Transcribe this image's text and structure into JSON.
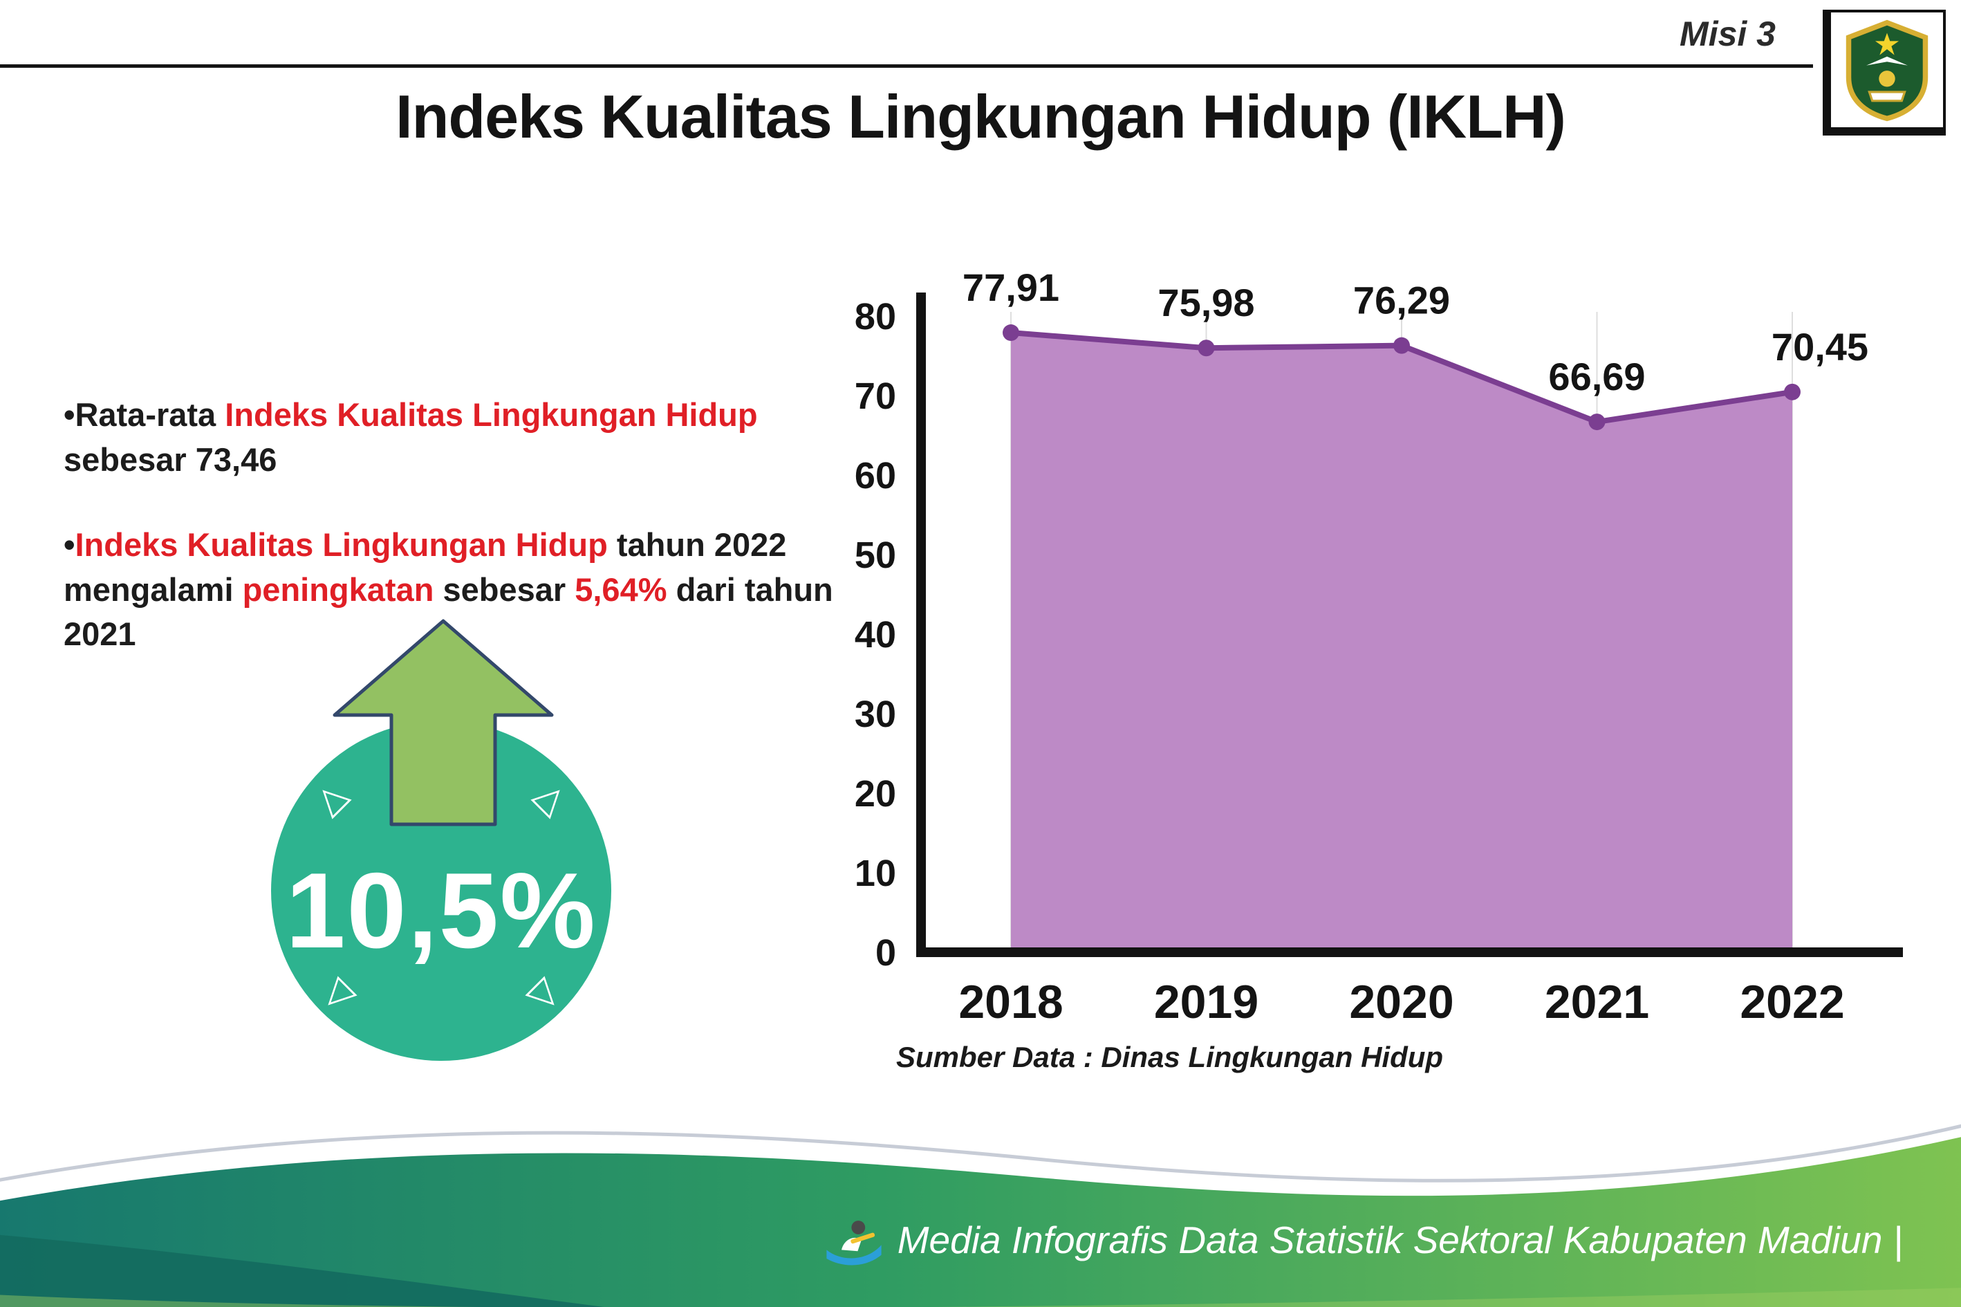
{
  "header": {
    "misi_label": "Misi 3",
    "title": "Indeks Kualitas Lingkungan Hidup (IKLH)",
    "logo_alt": "Kabupaten Madiun"
  },
  "bullets": {
    "b1": [
      {
        "text": "•Rata-rata ",
        "style": "dark"
      },
      {
        "text": "Indeks Kualitas Lingkungan Hidup",
        "style": "red"
      },
      {
        "text": " sebesar 73,46",
        "style": "dark"
      }
    ],
    "b2": [
      {
        "text": "•",
        "style": "dark"
      },
      {
        "text": "Indeks Kualitas Lingkungan Hidup",
        "style": "red"
      },
      {
        "text": " tahun 2022 mengalami ",
        "style": "dark"
      },
      {
        "text": "peningkatan",
        "style": "red"
      },
      {
        "text": " sebesar ",
        "style": "dark"
      },
      {
        "text": "5,64%",
        "style": "red"
      },
      {
        "text": " dari tahun 2021",
        "style": "dark"
      }
    ]
  },
  "badge": {
    "value": "10,5%"
  },
  "chart_data": {
    "type": "area",
    "categories": [
      "2018",
      "2019",
      "2020",
      "2021",
      "2022"
    ],
    "values": [
      77.91,
      75.98,
      76.29,
      66.69,
      70.45
    ],
    "point_labels": [
      "77,91",
      "75,98",
      "76,29",
      "66,69",
      "70,45"
    ],
    "title": "",
    "xlabel": "",
    "ylabel": "",
    "ylim": [
      0,
      80
    ],
    "yticks": [
      0,
      10,
      20,
      30,
      40,
      50,
      60,
      70,
      80
    ],
    "grid": "light-vertical",
    "legend": "none",
    "fill_color": "#bd8ac6",
    "line_color": "#7b3e91",
    "source": "Sumber Data : Dinas Lingkungan Hidup"
  },
  "footer": {
    "credit": "Media Infografis Data Statistik Sektoral Kabupaten Madiun |"
  },
  "colors": {
    "accent_red": "#e01f26",
    "badge_teal": "#2db38f",
    "arrow_green": "#93c162",
    "band_teal": "#17786e",
    "band_green": "#7fc351"
  }
}
